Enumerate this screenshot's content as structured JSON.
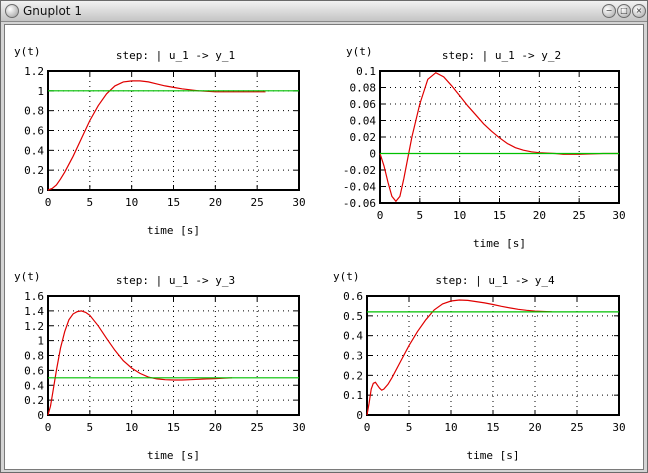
{
  "window": {
    "title": "Gnuplot  1"
  },
  "colors": {
    "response": "#e00000",
    "steady_state": "#00c000",
    "grid": "#000000"
  },
  "chart_data": [
    {
      "type": "line",
      "title": "step: | u_1 -> y_1",
      "xlabel": "time [s]",
      "ylabel": "y(t)",
      "xlim": [
        0,
        30
      ],
      "ylim": [
        0,
        1.2
      ],
      "xticks": [
        "0",
        "5",
        "10",
        "15",
        "20",
        "25",
        "30"
      ],
      "yticks": [
        "0",
        "0.2",
        "0.4",
        "0.6",
        "0.8",
        "1",
        "1.2"
      ],
      "grid": true,
      "series": [
        {
          "role": "response",
          "x": [
            0,
            0.5,
            1,
            1.5,
            2,
            3,
            4,
            5,
            6,
            7,
            8,
            9,
            10,
            11,
            12,
            13,
            14,
            15,
            16,
            17,
            18,
            19,
            20,
            21,
            22,
            23,
            24,
            25,
            26
          ],
          "y": [
            0,
            0.015,
            0.05,
            0.11,
            0.18,
            0.34,
            0.52,
            0.7,
            0.85,
            0.97,
            1.05,
            1.09,
            1.1,
            1.1,
            1.09,
            1.07,
            1.05,
            1.035,
            1.02,
            1.01,
            1.0,
            0.995,
            0.99,
            0.99,
            0.99,
            0.99,
            0.99,
            0.99,
            0.99
          ]
        },
        {
          "role": "steady_state",
          "x": [
            0,
            30
          ],
          "y": [
            1.0,
            1.0
          ]
        }
      ]
    },
    {
      "type": "line",
      "title": "step: | u_1 -> y_2",
      "xlabel": "time [s]",
      "ylabel": "y(t)",
      "xlim": [
        0,
        30
      ],
      "ylim": [
        -0.06,
        0.1
      ],
      "xticks": [
        "0",
        "5",
        "10",
        "15",
        "20",
        "25",
        "30"
      ],
      "yticks": [
        "-0.06",
        "-0.04",
        "-0.02",
        "0",
        "0.02",
        "0.04",
        "0.06",
        "0.08",
        "0.1"
      ],
      "grid": true,
      "series": [
        {
          "role": "response",
          "x": [
            0,
            0.5,
            1,
            1.5,
            2,
            2.5,
            3,
            3.5,
            4,
            5,
            6,
            7,
            8,
            9,
            10,
            11,
            12,
            13,
            14,
            15,
            16,
            17,
            18,
            19,
            20,
            21,
            22,
            23,
            25,
            28,
            30
          ],
          "y": [
            0,
            -0.015,
            -0.035,
            -0.052,
            -0.058,
            -0.052,
            -0.03,
            -0.005,
            0.02,
            0.06,
            0.09,
            0.098,
            0.093,
            0.082,
            0.07,
            0.058,
            0.047,
            0.036,
            0.027,
            0.019,
            0.012,
            0.007,
            0.004,
            0.002,
            0.001,
            0.0005,
            0,
            -0.001,
            -0.001,
            0,
            0
          ]
        },
        {
          "role": "steady_state",
          "x": [
            0,
            30
          ],
          "y": [
            0,
            0
          ]
        }
      ]
    },
    {
      "type": "line",
      "title": "step: | u_1 -> y_3",
      "xlabel": "time [s]",
      "ylabel": "y(t)",
      "xlim": [
        0,
        30
      ],
      "ylim": [
        0,
        1.6
      ],
      "xticks": [
        "0",
        "5",
        "10",
        "15",
        "20",
        "25",
        "30"
      ],
      "yticks": [
        "0",
        "0.2",
        "0.4",
        "0.6",
        "0.8",
        "1",
        "1.2",
        "1.4",
        "1.6"
      ],
      "grid": true,
      "series": [
        {
          "role": "response",
          "x": [
            0,
            0.3,
            0.6,
            1,
            1.5,
            2,
            2.5,
            3,
            3.5,
            4,
            4.5,
            5,
            6,
            7,
            8,
            9,
            10,
            11,
            12,
            13,
            14,
            15,
            16,
            17,
            18,
            19,
            20,
            21,
            22
          ],
          "y": [
            0,
            0.12,
            0.32,
            0.6,
            0.9,
            1.12,
            1.28,
            1.36,
            1.39,
            1.4,
            1.38,
            1.34,
            1.2,
            1.03,
            0.87,
            0.73,
            0.63,
            0.56,
            0.51,
            0.485,
            0.475,
            0.47,
            0.47,
            0.475,
            0.48,
            0.485,
            0.49,
            0.495,
            0.5
          ]
        },
        {
          "role": "steady_state",
          "x": [
            0,
            30
          ],
          "y": [
            0.5,
            0.5
          ]
        }
      ]
    },
    {
      "type": "line",
      "title": "step: | u_1 -> y_4",
      "xlabel": "time [s]",
      "ylabel": "y(t)",
      "xlim": [
        0,
        30
      ],
      "ylim": [
        0,
        0.6
      ],
      "xticks": [
        "0",
        "5",
        "10",
        "15",
        "20",
        "25",
        "30"
      ],
      "yticks": [
        "0",
        "0.1",
        "0.2",
        "0.3",
        "0.4",
        "0.5",
        "0.6"
      ],
      "grid": true,
      "series": [
        {
          "role": "response",
          "x": [
            0,
            0.25,
            0.5,
            0.75,
            1,
            1.25,
            1.5,
            1.75,
            2,
            2.5,
            3,
            4,
            5,
            6,
            7,
            8,
            9,
            10,
            11,
            12,
            13,
            14,
            15,
            16,
            17,
            18,
            19,
            20,
            21,
            22
          ],
          "y": [
            0,
            0.06,
            0.13,
            0.16,
            0.165,
            0.15,
            0.135,
            0.125,
            0.13,
            0.155,
            0.19,
            0.27,
            0.35,
            0.42,
            0.48,
            0.53,
            0.56,
            0.575,
            0.58,
            0.578,
            0.572,
            0.565,
            0.557,
            0.548,
            0.54,
            0.533,
            0.528,
            0.524,
            0.522,
            0.52
          ]
        },
        {
          "role": "steady_state",
          "x": [
            0,
            30
          ],
          "y": [
            0.52,
            0.52
          ]
        }
      ]
    }
  ]
}
